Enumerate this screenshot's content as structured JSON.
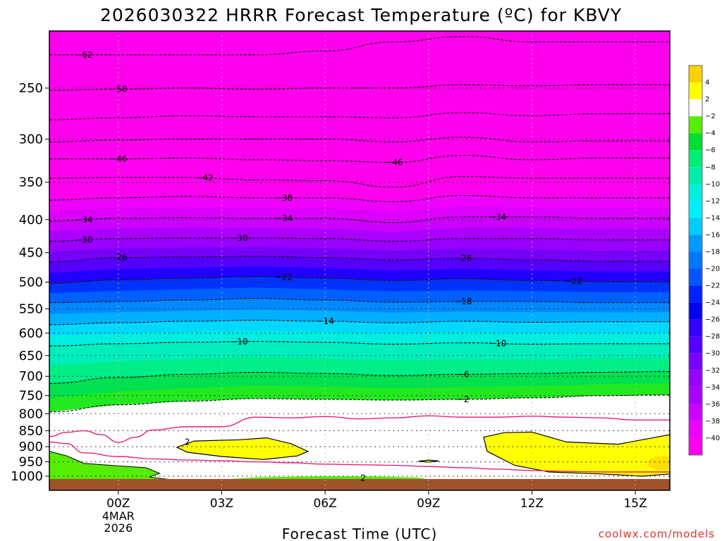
{
  "chart_data": {
    "type": "heatmap",
    "title": "2026030322 HRRR Forecast Temperature (ºC) for KBVY",
    "xlabel": "Forecast Time (UTC)",
    "ylabel": "",
    "credit": "coolwx.com/models",
    "x_ticks": [
      {
        "label": "00Z",
        "hour": 0,
        "sub": [
          "4MAR",
          "2026"
        ]
      },
      {
        "label": "03Z",
        "hour": 3
      },
      {
        "label": "06Z",
        "hour": 6
      },
      {
        "label": "09Z",
        "hour": 9
      },
      {
        "label": "12Z",
        "hour": 12
      },
      {
        "label": "15Z",
        "hour": 15
      }
    ],
    "xlim": [
      -2,
      16
    ],
    "y_ticks": [
      250,
      300,
      350,
      400,
      450,
      500,
      550,
      600,
      650,
      700,
      750,
      800,
      850,
      900,
      950,
      1000
    ],
    "ylim": [
      1020,
      200
    ],
    "y_scale": "log",
    "colorbar": {
      "ticks": [
        "4",
        "2",
        "-2",
        "-4",
        "-6",
        "-8",
        "-10",
        "-12",
        "-14",
        "-16",
        "-18",
        "-20",
        "-22",
        "-24",
        "-26",
        "-28",
        "-30",
        "-32",
        "-34",
        "-36",
        "-38",
        "-40"
      ],
      "colors": [
        "#ffd000",
        "#ffff00",
        "#ffffff",
        "#55ee00",
        "#00dd33",
        "#00ee77",
        "#00eeaa",
        "#00eedd",
        "#00eeff",
        "#00ccff",
        "#0099ff",
        "#0077ff",
        "#0055ff",
        "#0022ff",
        "#0000ee",
        "#3300ff",
        "#5500ff",
        "#7700ff",
        "#9900ff",
        "#aa00ff",
        "#cc00ff",
        "#ee00ff",
        "#ff00ee"
      ]
    },
    "isotherms": [
      {
        "value": -62,
        "label": "62",
        "p": [
          222,
          222,
          222,
          222,
          219,
          212,
          208,
          212,
          212,
          212
        ]
      },
      {
        "value": -58,
        "label": "58",
        "p": [
          252,
          251,
          250,
          251,
          250,
          250,
          247,
          248,
          247,
          247
        ]
      },
      {
        "value": -54,
        "p": [
          280,
          278,
          276,
          277,
          277,
          278,
          273,
          276,
          274,
          274
        ]
      },
      {
        "value": -50,
        "p": [
          303,
          301,
          300,
          300,
          300,
          303,
          298,
          303,
          302,
          302
        ]
      },
      {
        "value": -46,
        "label": "46",
        "p": [
          322,
          322,
          321,
          323,
          324,
          326,
          318,
          323,
          321,
          321
        ]
      },
      {
        "value": -42,
        "label": "42",
        "p": [
          345,
          344,
          344,
          347,
          348,
          356,
          343,
          345,
          345,
          345
        ]
      },
      {
        "value": -38,
        "label": "38",
        "p": [
          373,
          370,
          368,
          370,
          370,
          375,
          367,
          370,
          370,
          370
        ]
      },
      {
        "value": -34,
        "label": "34",
        "p": [
          402,
          398,
          397,
          398,
          398,
          404,
          396,
          396,
          398,
          398
        ]
      },
      {
        "value": -30,
        "label": "30",
        "p": [
          432,
          428,
          427,
          427,
          428,
          432,
          428,
          428,
          430,
          430
        ]
      },
      {
        "value": -26,
        "label": "26",
        "p": [
          465,
          458,
          457,
          456,
          458,
          462,
          459,
          462,
          464,
          464
        ]
      },
      {
        "value": -22,
        "label": "22",
        "p": [
          502,
          496,
          493,
          490,
          493,
          497,
          494,
          497,
          499,
          499
        ]
      },
      {
        "value": -18,
        "label": "18",
        "p": [
          538,
          536,
          533,
          530,
          533,
          537,
          536,
          536,
          538,
          538
        ]
      },
      {
        "value": -14,
        "label": "14",
        "p": [
          582,
          578,
          575,
          573,
          575,
          578,
          575,
          577,
          576,
          576
        ]
      },
      {
        "value": -10,
        "label": "10",
        "p": [
          628,
          623,
          620,
          618,
          620,
          624,
          621,
          624,
          623,
          623
        ]
      },
      {
        "value": -6,
        "label": "6",
        "p": [
          718,
          703,
          695,
          690,
          693,
          698,
          695,
          693,
          690,
          688
        ]
      },
      {
        "value": -2,
        "label": "2",
        "p": [
          795,
          775,
          765,
          758,
          760,
          762,
          760,
          756,
          750,
          748
        ]
      }
    ],
    "isotherm_hours": [
      -2,
      0,
      2,
      4,
      6,
      8,
      10,
      12,
      14,
      16
    ],
    "zero_line_upper": {
      "hours": [
        -2,
        -1.5,
        -1,
        -0.5,
        0,
        0.5,
        1,
        2,
        3,
        4,
        5,
        6,
        7,
        8,
        9,
        10,
        11,
        12,
        13,
        14,
        15,
        16
      ],
      "p": [
        868,
        855,
        850,
        862,
        886,
        870,
        848,
        838,
        838,
        810,
        812,
        808,
        815,
        812,
        806,
        810,
        810,
        807,
        810,
        812,
        818,
        818
      ]
    },
    "zero_line_lower": {
      "hours": [
        -2,
        -1.5,
        -1,
        0,
        1,
        2,
        3,
        4,
        5,
        6,
        7,
        8,
        9,
        10,
        11,
        12,
        13,
        14,
        15,
        16
      ],
      "p": [
        885,
        890,
        920,
        932,
        940,
        944,
        946,
        950,
        953,
        958,
        960,
        962,
        966,
        970,
        975,
        980,
        983,
        985,
        985,
        985
      ]
    },
    "warm_regions": [
      {
        "value": 2,
        "label": "2",
        "hours": [
          1.7,
          2.2,
          3.5,
          4.3,
          5.0,
          5.5,
          5.2,
          4.2,
          3.0,
          2.0,
          1.7
        ],
        "p": [
          902,
          882,
          878,
          872,
          890,
          915,
          930,
          942,
          932,
          918,
          902
        ]
      },
      {
        "value": 2,
        "hours": [
          8.7,
          9.0,
          9.3,
          9.0,
          8.7
        ],
        "p": [
          948,
          944,
          947,
          951,
          948
        ]
      },
      {
        "value": 2,
        "hours": [
          10.6,
          11.2,
          12.0,
          13.0,
          14.5,
          16.0,
          16.0,
          15.2,
          14.0,
          12.5,
          11.5,
          10.7,
          10.6
        ],
        "p": [
          870,
          856,
          854,
          885,
          892,
          862,
          992,
          1000,
          992,
          985,
          962,
          915,
          870
        ]
      }
    ],
    "surface_labels": [
      {
        "label": "2",
        "hour": 7.1,
        "p": 1006
      }
    ]
  }
}
